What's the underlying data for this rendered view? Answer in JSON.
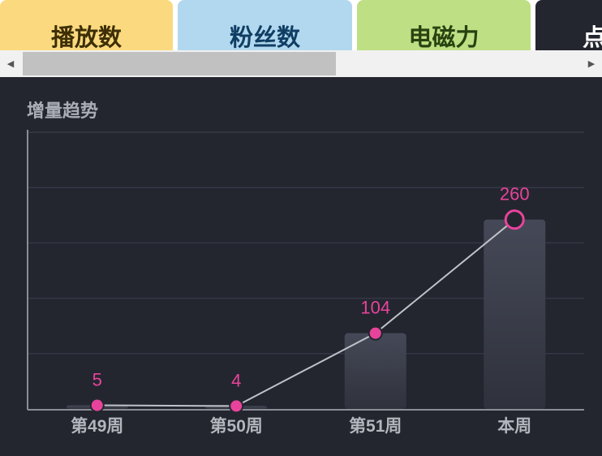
{
  "tabs": [
    {
      "label": "播放数",
      "bg": "#fbd97e",
      "color": "#3d2e05"
    },
    {
      "label": "粉丝数",
      "bg": "#b2d8f0",
      "color": "#103e63"
    },
    {
      "label": "电磁力",
      "bg": "#bedf84",
      "color": "#2a4210"
    },
    {
      "label": "点",
      "bg": "#23262f",
      "color": "#ffffff"
    }
  ],
  "scrollbar": {
    "left_arrow": "◀",
    "right_arrow": "▶"
  },
  "panel": {
    "title": "增量趋势"
  },
  "chart_data": {
    "type": "bar",
    "categories": [
      "第49周",
      "第50周",
      "第51周",
      "本周"
    ],
    "values": [
      5,
      4,
      104,
      260
    ],
    "line_values": [
      5,
      4,
      104,
      260
    ],
    "ylim": [
      0,
      380
    ],
    "grid": true,
    "colors": {
      "bar_top": "#454957",
      "bar_bottom": "#2f323c",
      "line": "#bfc2c8",
      "point": "#e8439b",
      "label": "#e8439b",
      "axis": "#8a8d95",
      "grid": "#343845"
    }
  }
}
